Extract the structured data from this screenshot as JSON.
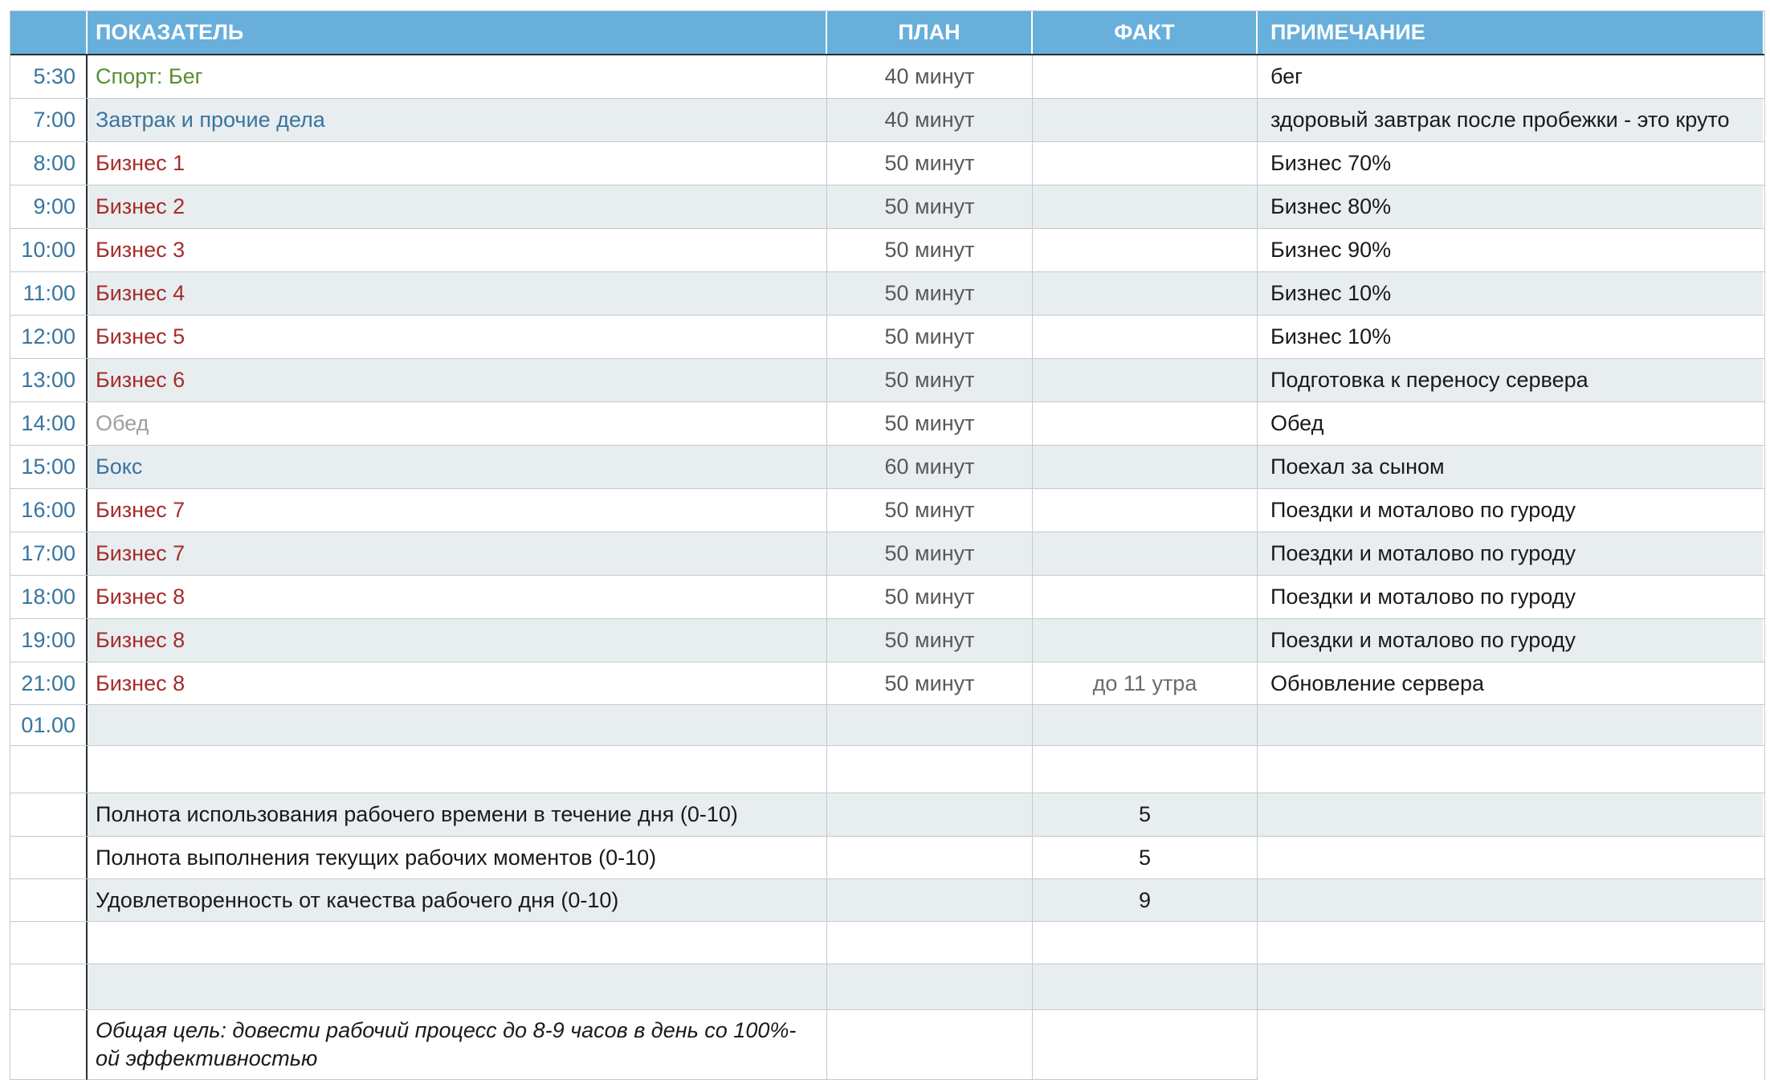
{
  "table": {
    "columns": {
      "time": "",
      "indicator": "ПОКАЗАТЕЛЬ",
      "plan": "ПЛАН",
      "fact": "ФАКТ",
      "note": "ПРИМЕЧАНИЕ"
    },
    "schedule_rows": [
      {
        "time": "5:30",
        "indicator": "Спорт: Бег",
        "color": "green",
        "plan": "40 минут",
        "fact": "",
        "note": "бег"
      },
      {
        "time": "7:00",
        "indicator": "Завтрак и прочие дела",
        "color": "blue",
        "plan": "40 минут",
        "fact": "",
        "note": "здоровый завтрак после пробежки - это круто"
      },
      {
        "time": "8:00",
        "indicator": "Бизнес 1",
        "color": "red",
        "plan": "50 минут",
        "fact": "",
        "note": "Бизнес 70%"
      },
      {
        "time": "9:00",
        "indicator": "Бизнес 2",
        "color": "red",
        "plan": "50 минут",
        "fact": "",
        "note": "Бизнес 80%"
      },
      {
        "time": "10:00",
        "indicator": "Бизнес 3",
        "color": "red",
        "plan": "50 минут",
        "fact": "",
        "note": "Бизнес 90%"
      },
      {
        "time": "11:00",
        "indicator": "Бизнес 4",
        "color": "red",
        "plan": "50 минут",
        "fact": "",
        "note": "Бизнес 10%"
      },
      {
        "time": "12:00",
        "indicator": "Бизнес 5",
        "color": "red",
        "plan": "50 минут",
        "fact": "",
        "note": "Бизнес 10%"
      },
      {
        "time": "13:00",
        "indicator": "Бизнес 6",
        "color": "red",
        "plan": "50 минут",
        "fact": "",
        "note": "Подготовка к переносу сервера"
      },
      {
        "time": "14:00",
        "indicator": "Обед",
        "color": "gray",
        "plan": "50 минут",
        "fact": "",
        "note": "Обед"
      },
      {
        "time": "15:00",
        "indicator": "Бокс",
        "color": "blue",
        "plan": "60 минут",
        "fact": "",
        "note": "Поехал за сыном"
      },
      {
        "time": "16:00",
        "indicator": "Бизнес 7",
        "color": "red",
        "plan": "50 минут",
        "fact": "",
        "note": "Поездки и моталово по гуроду"
      },
      {
        "time": "17:00",
        "indicator": "Бизнес 7",
        "color": "red",
        "plan": "50 минут",
        "fact": "",
        "note": "Поездки и моталово по гуроду"
      },
      {
        "time": "18:00",
        "indicator": "Бизнес 8",
        "color": "red",
        "plan": "50 минут",
        "fact": "",
        "note": "Поездки и моталово по гуроду"
      },
      {
        "time": "19:00",
        "indicator": "Бизнес 8",
        "color": "red",
        "plan": "50 минут",
        "fact": "",
        "note": "Поездки и моталово по гуроду"
      },
      {
        "time": "21:00",
        "indicator": "Бизнес 8",
        "color": "red",
        "plan": "50 минут",
        "fact": "до 11 утра",
        "note": "Обновление сервера"
      },
      {
        "time": "01.00",
        "indicator": "",
        "color": "",
        "plan": "",
        "fact": "",
        "note": ""
      }
    ],
    "metric_rows": [
      {
        "label": "Полнота использования рабочего времени в течение дня (0-10)",
        "fact": "5"
      },
      {
        "label": "Полнота выполнения текущих рабочих моментов (0-10)",
        "fact": "5"
      },
      {
        "label": "Удовлетворенность от качества рабочего дня (0-10)",
        "fact": "9"
      }
    ],
    "goal_note": "Общая цель: довести рабочий процесс до 8-9 часов в день со 100%-\nой эффективностью",
    "colors": {
      "header_bg": "#68AFDB",
      "header_text": "#FFFFFF",
      "alt_row_bg": "#E8EDEF",
      "grid_line": "#C5CACD",
      "dark_line": "#2A2E31",
      "time_text": "#38759F",
      "green": "#5A8E2E",
      "blue": "#38759F",
      "red": "#A62C2B",
      "gray": "#9BA0A4",
      "plan_text": "#58585A",
      "fact_muted": "#6B6B6B",
      "note_text": "#1A1A1A"
    }
  }
}
